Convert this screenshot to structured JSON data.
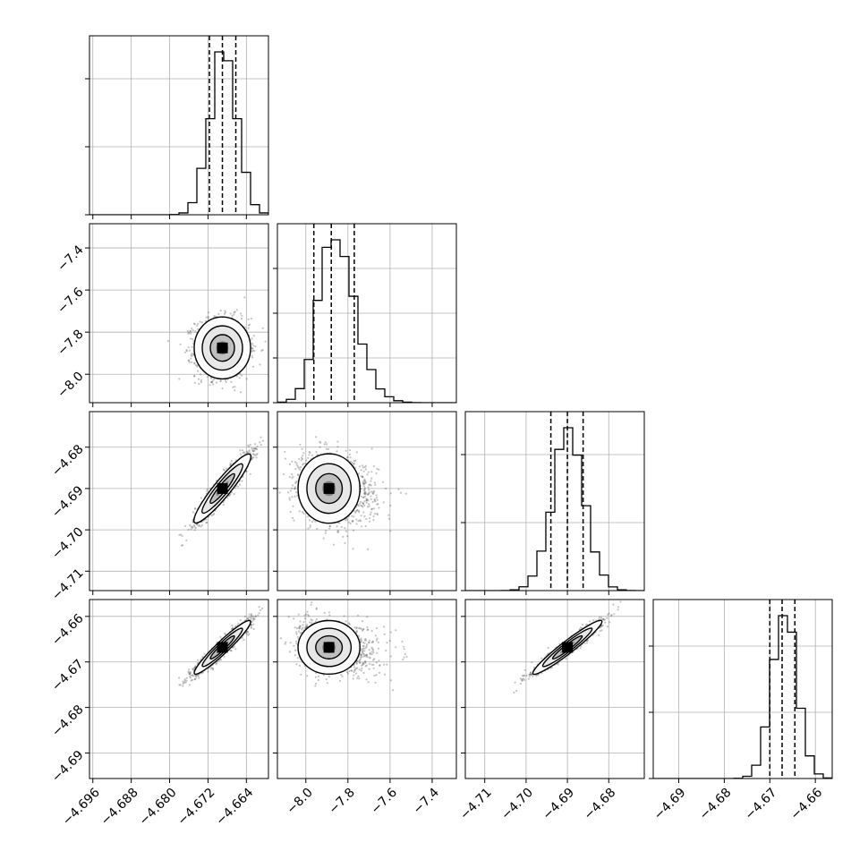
{
  "chart_data": {
    "type": "corner",
    "parameters": [
      {
        "range": [
          -4.6967,
          -4.6594
        ],
        "ticks": [
          -4.696,
          -4.688,
          -4.68,
          -4.672,
          -4.664
        ],
        "tick_labels": [
          "−4.696",
          "−4.688",
          "−4.680",
          "−4.672",
          "−4.664"
        ]
      },
      {
        "range": [
          -8.135,
          -7.285
        ],
        "ticks": [
          -8.0,
          -7.8,
          -7.6,
          -7.4
        ],
        "tick_labels": [
          "−8.0",
          "−7.8",
          "−7.6",
          "−7.4"
        ]
      },
      {
        "range": [
          -4.7147,
          -4.6714
        ],
        "ticks": [
          -4.71,
          -4.7,
          -4.69,
          -4.68
        ],
        "tick_labels": [
          "−4.71",
          "−4.70",
          "−4.69",
          "−4.68"
        ]
      },
      {
        "range": [
          -4.6956,
          -4.6563
        ],
        "ticks": [
          -4.69,
          -4.68,
          -4.67,
          -4.66
        ],
        "tick_labels": [
          "−4.69",
          "−4.68",
          "−4.67",
          "−4.66"
        ]
      }
    ],
    "histograms": [
      {
        "param": 0,
        "quantiles": [
          -4.6717,
          -4.669,
          -4.6662
        ],
        "mode": -4.6688,
        "sigma": 0.0028,
        "hist_max": 1.0,
        "hist_ticks": [
          0.38,
          0.76
        ]
      },
      {
        "param": 1,
        "quantiles": [
          -7.962,
          -7.879,
          -7.77
        ],
        "mode": -7.875,
        "sigma": 0.07,
        "hist_max": 1.0,
        "hist_ticks": [
          0.25,
          0.5,
          0.75
        ]
      },
      {
        "param": 2,
        "quantiles": [
          -4.694,
          -4.69,
          -4.6862
        ],
        "mode": -4.6898,
        "sigma": 0.004,
        "hist_max": 1.0,
        "hist_ticks": [
          0.38,
          0.76
        ]
      },
      {
        "param": 3,
        "quantiles": [
          -4.67,
          -4.6673,
          -4.6645
        ],
        "mode": -4.6668,
        "sigma": 0.0028,
        "hist_max": 1.0,
        "hist_ticks": [
          0.37,
          0.74
        ]
      }
    ],
    "joint_panels": [
      {
        "row": 1,
        "col": 0,
        "center": [
          -4.669,
          -7.875
        ],
        "sd": [
          0.0028,
          0.07
        ],
        "corr": 0.0,
        "tilt": 0
      },
      {
        "row": 2,
        "col": 0,
        "center": [
          -4.669,
          -4.69
        ],
        "sd": [
          0.0028,
          0.004
        ],
        "corr": 0.93,
        "tilt": 1
      },
      {
        "row": 2,
        "col": 1,
        "center": [
          -7.89,
          -4.69
        ],
        "sd": [
          0.07,
          0.004
        ],
        "corr": -0.2,
        "tilt": 0
      },
      {
        "row": 3,
        "col": 0,
        "center": [
          -4.669,
          -4.6668
        ],
        "sd": [
          0.0028,
          0.0028
        ],
        "corr": 0.95,
        "tilt": 1
      },
      {
        "row": 3,
        "col": 1,
        "center": [
          -7.89,
          -4.6668
        ],
        "sd": [
          0.07,
          0.0028
        ],
        "corr": -0.2,
        "tilt": 0
      },
      {
        "row": 3,
        "col": 2,
        "center": [
          -4.69,
          -4.6668
        ],
        "sd": [
          0.004,
          0.0028
        ],
        "corr": 0.96,
        "tilt": 1
      }
    ],
    "grid": true,
    "xlabel": "",
    "ylabel": "",
    "title": ""
  },
  "colors": {
    "axis": "#000000",
    "grid": "#b0b0b0",
    "points": "#555555",
    "density": "#000000",
    "background": "#ffffff"
  }
}
